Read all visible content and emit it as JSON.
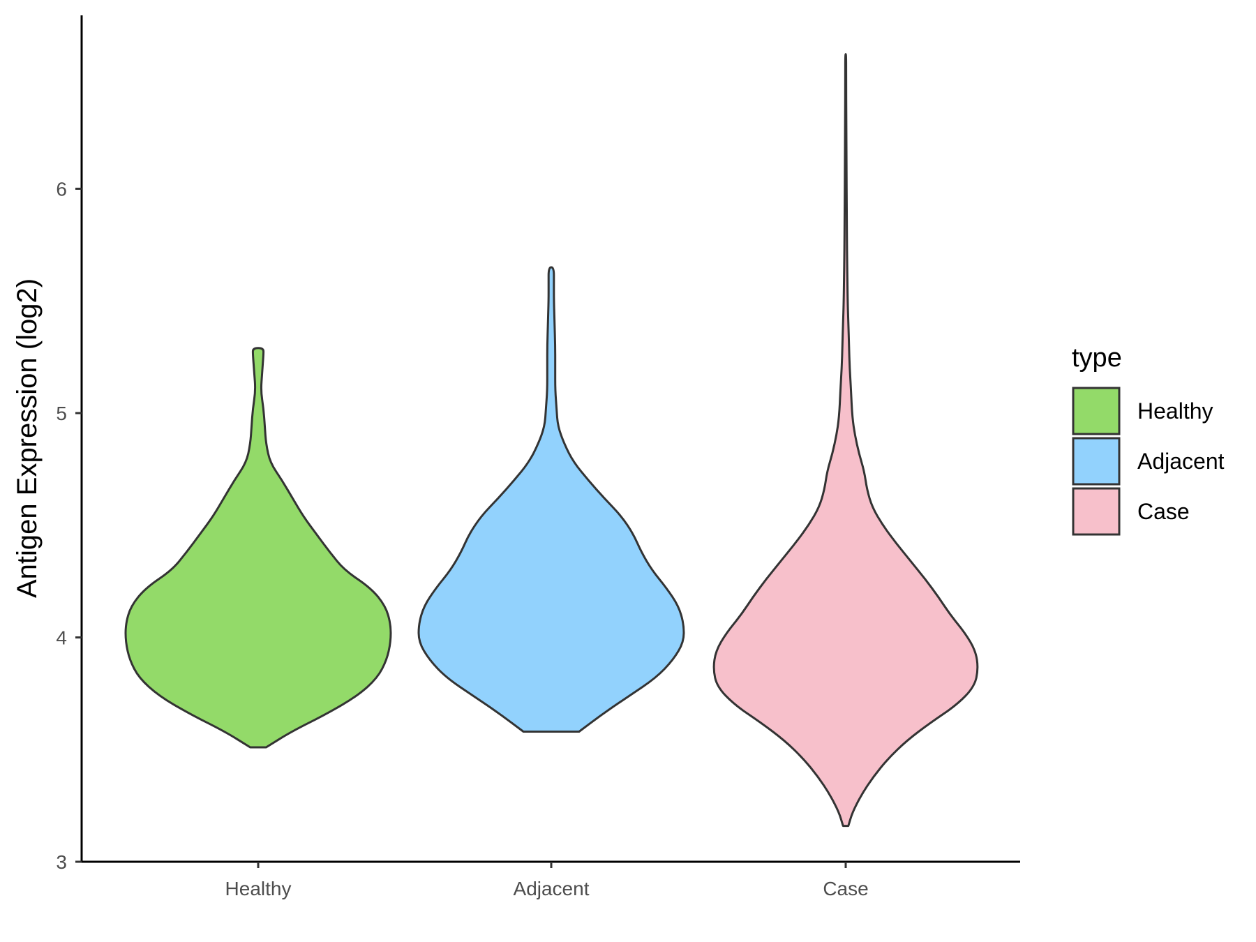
{
  "chart_data": {
    "type": "violin",
    "title": "",
    "xlabel": "",
    "ylabel": "Antigen Expression (log2)",
    "ylim": [
      3,
      6.8
    ],
    "yticks": [
      3,
      4,
      5,
      6
    ],
    "grid": false,
    "categories": [
      "Healthy",
      "Adjacent",
      "Case"
    ],
    "legend": {
      "title": "type",
      "position": "right",
      "entries": [
        "Healthy",
        "Adjacent",
        "Case"
      ]
    },
    "series": [
      {
        "category": "Healthy",
        "color": "#93DA69",
        "min": 3.51,
        "max": 5.29,
        "profile": [
          [
            3.51,
            0.06
          ],
          [
            3.58,
            0.25
          ],
          [
            3.66,
            0.52
          ],
          [
            3.74,
            0.75
          ],
          [
            3.82,
            0.9
          ],
          [
            3.9,
            0.97
          ],
          [
            3.98,
            1.0
          ],
          [
            4.06,
            1.0
          ],
          [
            4.14,
            0.96
          ],
          [
            4.22,
            0.85
          ],
          [
            4.3,
            0.65
          ],
          [
            4.38,
            0.54
          ],
          [
            4.46,
            0.44
          ],
          [
            4.54,
            0.34
          ],
          [
            4.62,
            0.26
          ],
          [
            4.7,
            0.18
          ],
          [
            4.78,
            0.09
          ],
          [
            4.86,
            0.06
          ],
          [
            4.94,
            0.05
          ],
          [
            5.02,
            0.04
          ],
          [
            5.1,
            0.02
          ],
          [
            5.18,
            0.03
          ],
          [
            5.26,
            0.04
          ],
          [
            5.29,
            0.04
          ]
        ]
      },
      {
        "category": "Adjacent",
        "color": "#92D2FD",
        "min": 3.58,
        "max": 5.65,
        "profile": [
          [
            3.58,
            0.21
          ],
          [
            3.66,
            0.39
          ],
          [
            3.74,
            0.59
          ],
          [
            3.82,
            0.79
          ],
          [
            3.9,
            0.92
          ],
          [
            3.98,
            1.0
          ],
          [
            4.06,
            1.0
          ],
          [
            4.14,
            0.96
          ],
          [
            4.22,
            0.87
          ],
          [
            4.3,
            0.76
          ],
          [
            4.38,
            0.68
          ],
          [
            4.46,
            0.62
          ],
          [
            4.54,
            0.53
          ],
          [
            4.62,
            0.4
          ],
          [
            4.7,
            0.28
          ],
          [
            4.78,
            0.17
          ],
          [
            4.86,
            0.1
          ],
          [
            4.94,
            0.05
          ],
          [
            5.02,
            0.04
          ],
          [
            5.1,
            0.03
          ],
          [
            5.2,
            0.03
          ],
          [
            5.3,
            0.03
          ],
          [
            5.4,
            0.025
          ],
          [
            5.5,
            0.02
          ],
          [
            5.58,
            0.02
          ],
          [
            5.65,
            0.02
          ]
        ]
      },
      {
        "category": "Case",
        "color": "#F7C0CB",
        "min": 3.16,
        "max": 6.6,
        "profile": [
          [
            3.16,
            0.02
          ],
          [
            3.22,
            0.05
          ],
          [
            3.3,
            0.12
          ],
          [
            3.38,
            0.21
          ],
          [
            3.46,
            0.32
          ],
          [
            3.54,
            0.46
          ],
          [
            3.62,
            0.64
          ],
          [
            3.7,
            0.84
          ],
          [
            3.78,
            0.97
          ],
          [
            3.86,
            1.0
          ],
          [
            3.94,
            0.98
          ],
          [
            4.02,
            0.9
          ],
          [
            4.1,
            0.79
          ],
          [
            4.18,
            0.7
          ],
          [
            4.26,
            0.6
          ],
          [
            4.34,
            0.49
          ],
          [
            4.42,
            0.38
          ],
          [
            4.5,
            0.28
          ],
          [
            4.58,
            0.2
          ],
          [
            4.66,
            0.16
          ],
          [
            4.74,
            0.14
          ],
          [
            4.82,
            0.1
          ],
          [
            4.9,
            0.07
          ],
          [
            4.98,
            0.05
          ],
          [
            5.1,
            0.04
          ],
          [
            5.2,
            0.03
          ],
          [
            5.3,
            0.025
          ],
          [
            5.4,
            0.02
          ],
          [
            5.5,
            0.015
          ],
          [
            5.7,
            0.01
          ],
          [
            5.9,
            0.008
          ],
          [
            6.1,
            0.006
          ],
          [
            6.3,
            0.004
          ],
          [
            6.5,
            0.003
          ],
          [
            6.6,
            0.003
          ]
        ]
      }
    ]
  }
}
